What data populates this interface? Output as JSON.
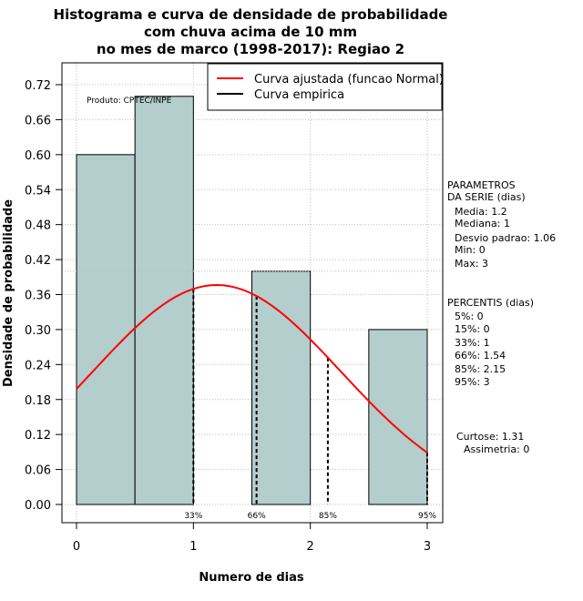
{
  "chart_data": {
    "type": "bar",
    "title_lines": [
      "Histograma e curva de densidade de probabilidade",
      "com chuva acima de 10 mm",
      "no mes de marco (1998-2017): Regiao 2"
    ],
    "xlabel": "Numero de dias",
    "ylabel": "Densidade de probabilidade",
    "xlim": [
      -0.1,
      3.1
    ],
    "ylim": [
      0,
      0.75
    ],
    "x_ticks": [
      0,
      1,
      2,
      3
    ],
    "y_ticks": [
      0.0,
      0.06,
      0.12,
      0.18,
      0.24,
      0.3,
      0.36,
      0.42,
      0.48,
      0.54,
      0.6,
      0.66,
      0.72
    ],
    "y_tick_labels": [
      "0.00",
      "0.06",
      "0.12",
      "0.18",
      "0.24",
      "0.30",
      "0.36",
      "0.42",
      "0.48",
      "0.54",
      "0.60",
      "0.66",
      "0.72"
    ],
    "bars": [
      {
        "x0": 0.0,
        "x1": 0.5,
        "value": 0.6
      },
      {
        "x0": 0.5,
        "x1": 1.0,
        "value": 0.7
      },
      {
        "x0": 1.5,
        "x1": 2.0,
        "value": 0.4
      },
      {
        "x0": 2.5,
        "x1": 3.0,
        "value": 0.3
      }
    ],
    "normal_curve": {
      "mean": 1.2,
      "sd": 1.06,
      "x_from": 0.0,
      "x_to": 3.0
    },
    "reference_line_y": 0.4,
    "percentile_lines": [
      {
        "x": 1.0,
        "label": "33%"
      },
      {
        "x": 1.54,
        "label": "66%"
      },
      {
        "x": 2.15,
        "label": "85%"
      },
      {
        "x": 3.0,
        "label": "95%"
      }
    ],
    "legend": [
      {
        "label": "Curva ajustada (funcao Normal)",
        "color": "#ff0000"
      },
      {
        "label": "Curva empirica",
        "color": "#000000"
      }
    ],
    "product_label": "Produto: CPTEC/INPE",
    "colors": {
      "bar_fill": "#b4cdcd",
      "curve": "#ff0000",
      "grid": "#bebebe"
    }
  },
  "parameters": {
    "heading_lines": [
      "PARAMETROS",
      "DA SERIE (dias)"
    ],
    "items": [
      "Media: 1.2",
      "Mediana: 1",
      "Desvio padrao: 1.06",
      "Min: 0",
      "Max: 3"
    ]
  },
  "percentiles": {
    "heading": "PERCENTIS (dias)",
    "items": [
      "5%: 0",
      "15%: 0",
      "33%: 1",
      "66%: 1.54",
      "85%: 2.15",
      "95%: 3"
    ]
  },
  "shape_stats": {
    "kurtosis": "Curtose: 1.31",
    "skewness": "Assimetria: 0"
  }
}
